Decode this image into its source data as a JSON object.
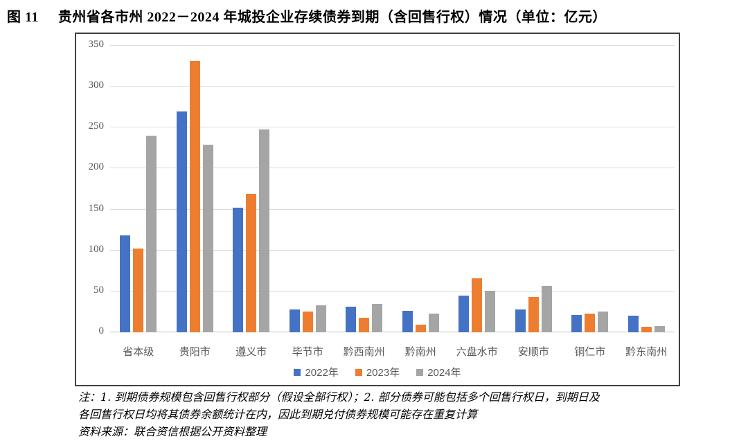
{
  "header": {
    "figure_label": "图 11",
    "title": "贵州省各市州 2022－2024 年城投企业存续债券到期（含回售行权）情况（单位：亿元）"
  },
  "chart_data": {
    "type": "bar",
    "title": "贵州省各市州 2022－2024 年城投企业存续债券到期（含回售行权）情况",
    "unit_label": "单位：亿元",
    "categories": [
      "省本级",
      "贵阳市",
      "遵义市",
      "毕节市",
      "黔西南州",
      "黔南州",
      "六盘水市",
      "安顺市",
      "铜仁市",
      "黔东南州"
    ],
    "series": [
      {
        "name": "2022年",
        "color": "#4472C4",
        "values": [
          118,
          270,
          152,
          28,
          31,
          26,
          45,
          28,
          21,
          20
        ]
      },
      {
        "name": "2023年",
        "color": "#ED7D31",
        "values": [
          102,
          331,
          169,
          25,
          18,
          9,
          66,
          43,
          23,
          7
        ]
      },
      {
        "name": "2024年",
        "color": "#A5A5A5",
        "values": [
          240,
          229,
          248,
          33,
          35,
          23,
          51,
          57,
          25,
          8
        ]
      }
    ],
    "ylim": [
      0,
      350
    ],
    "yticks": [
      0,
      50,
      100,
      150,
      200,
      250,
      300,
      350
    ],
    "grid": true,
    "legend_position": "bottom",
    "gridline_color": "#d9d9d9",
    "axis_text_color": "#595959"
  },
  "notes": {
    "line1": "注：1. 到期债券规模包含回售行权部分（假设全部行权）；2. 部分债券可能包括多个回售行权日，到期日及",
    "line2": "各回售行权日均将其债券余额统计在内，因此到期兑付债券规模可能存在重复计算",
    "source": "资料来源：联合资信根据公开资料整理"
  }
}
